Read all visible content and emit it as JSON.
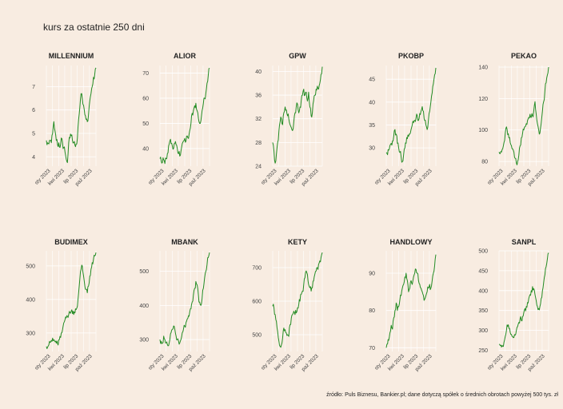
{
  "title": "kurs za ostatnie 250 dni",
  "source": "źródło: Puls Biznesu, Bankier.pl; dane dotyczą spółek o średnich obrotach powyżej 500 tys. zł",
  "line_color": "#238b23",
  "background": "#f8ece1",
  "chart_data": [
    {
      "type": "line",
      "title": "MILLENNIUM",
      "ylim": [
        3.6,
        7.9
      ],
      "yticks": [
        4,
        5,
        6,
        7
      ],
      "x_labels": [
        "sty 2023",
        "kwi 2023",
        "lip 2023",
        "paź 2023"
      ],
      "series": [
        {
          "values": [
            4.7,
            4.6,
            4.55,
            4.7,
            4.6,
            5.0,
            5.5,
            5.1,
            4.7,
            4.5,
            4.6,
            4.4,
            4.8,
            4.6,
            4.4,
            4.2,
            3.9,
            3.75,
            4.6,
            4.8,
            4.9,
            4.7,
            4.6,
            4.5,
            4.55,
            4.8,
            5.6,
            6.1,
            6.7,
            6.5,
            6.2,
            5.8,
            5.6,
            5.5,
            5.8,
            6.4,
            6.7,
            7.0,
            7.4,
            7.5,
            7.8
          ]
        }
      ]
    },
    {
      "type": "line",
      "title": "ALIOR",
      "ylim": [
        33,
        73
      ],
      "yticks": [
        40,
        50,
        60,
        70
      ],
      "x_labels": [
        "sty 2023",
        "kwi 2023",
        "lip 2023",
        "paź 2023"
      ],
      "series": [
        {
          "values": [
            36,
            35,
            34.5,
            35.5,
            34,
            36,
            38,
            41,
            43,
            42,
            41,
            40,
            42,
            41.5,
            40,
            38,
            37,
            39,
            42,
            43,
            44,
            43,
            45,
            44,
            47,
            50,
            54,
            55,
            57,
            58,
            55,
            52,
            50,
            51,
            55,
            58,
            60,
            62,
            66,
            69,
            72
          ]
        }
      ]
    },
    {
      "type": "line",
      "title": "GPW",
      "ylim": [
        24,
        41
      ],
      "yticks": [
        24,
        28,
        32,
        36,
        40
      ],
      "x_labels": [
        "sty 2023",
        "kwi 2023",
        "lip 2023",
        "paź 2023"
      ],
      "series": [
        {
          "values": [
            28,
            26.5,
            24.5,
            26,
            28,
            30,
            31.5,
            32,
            31,
            33,
            34,
            33.5,
            32.5,
            32,
            31,
            30.5,
            30,
            31.5,
            33,
            34,
            34.5,
            33,
            34,
            35,
            36,
            37,
            36,
            36.5,
            35,
            36.5,
            34,
            32.5,
            33,
            35,
            36,
            37,
            37.5,
            37,
            38,
            39.5,
            40.8
          ]
        }
      ]
    },
    {
      "type": "line",
      "title": "PKOBP",
      "ylim": [
        26,
        48
      ],
      "yticks": [
        30,
        35,
        40,
        45
      ],
      "x_labels": [
        "sty 2023",
        "kwi 2023",
        "lip 2023",
        "paź 2023"
      ],
      "series": [
        {
          "values": [
            29,
            28.5,
            29.5,
            30.5,
            31,
            31.5,
            32.5,
            34,
            33,
            31,
            30,
            29,
            28,
            27,
            28.5,
            30,
            31,
            32,
            32.5,
            33,
            34,
            35,
            35.5,
            36,
            36.5,
            37,
            36,
            37.5,
            38,
            39,
            38,
            36,
            35,
            34,
            36,
            38,
            40,
            42,
            44,
            46,
            47.5
          ]
        }
      ]
    },
    {
      "type": "line",
      "title": "PEKAO",
      "ylim": [
        77,
        141
      ],
      "yticks": [
        80,
        100,
        120,
        140
      ],
      "x_labels": [
        "sty 2023",
        "kwi 2023",
        "lip 2023",
        "paź 2023"
      ],
      "series": [
        {
          "values": [
            86,
            85,
            86,
            88,
            92,
            98,
            102,
            97,
            95,
            92,
            90,
            88,
            86,
            82,
            79,
            80,
            84,
            90,
            95,
            98,
            100,
            102,
            104,
            106,
            108,
            110,
            108,
            109,
            112,
            118,
            110,
            104,
            100,
            98,
            104,
            112,
            118,
            125,
            130,
            135,
            140
          ]
        }
      ]
    },
    {
      "type": "line",
      "title": "BUDIMEX",
      "ylim": [
        245,
        545
      ],
      "yticks": [
        300,
        400,
        500
      ],
      "x_labels": [
        "sty 2023",
        "kwi 2023",
        "lip 2023",
        "paź 2023"
      ],
      "series": [
        {
          "values": [
            260,
            258,
            265,
            272,
            278,
            285,
            280,
            274,
            270,
            268,
            280,
            290,
            300,
            310,
            330,
            340,
            345,
            350,
            355,
            360,
            365,
            358,
            355,
            360,
            370,
            380,
            420,
            460,
            490,
            500,
            470,
            440,
            430,
            420,
            440,
            470,
            490,
            510,
            520,
            530,
            540
          ]
        }
      ]
    },
    {
      "type": "line",
      "title": "MBANK",
      "ylim": [
        265,
        560
      ],
      "yticks": [
        300,
        400,
        500
      ],
      "x_labels": [
        "sty 2023",
        "kwi 2023",
        "lip 2023",
        "paź 2023"
      ],
      "series": [
        {
          "values": [
            300,
            295,
            290,
            310,
            300,
            290,
            285,
            282,
            300,
            320,
            330,
            340,
            330,
            310,
            300,
            295,
            290,
            300,
            320,
            330,
            340,
            350,
            360,
            370,
            380,
            390,
            410,
            430,
            450,
            470,
            460,
            430,
            410,
            400,
            420,
            450,
            480,
            500,
            520,
            540,
            555
          ]
        }
      ]
    },
    {
      "type": "line",
      "title": "KETY",
      "ylim": [
        450,
        750
      ],
      "yticks": [
        500,
        600,
        700
      ],
      "x_labels": [
        "sty 2023",
        "kwi 2023",
        "lip 2023",
        "paź 2023"
      ],
      "series": [
        {
          "values": [
            585,
            580,
            560,
            540,
            510,
            480,
            465,
            470,
            490,
            520,
            515,
            505,
            500,
            495,
            530,
            550,
            560,
            570,
            560,
            565,
            580,
            590,
            600,
            620,
            630,
            650,
            670,
            690,
            680,
            650,
            640,
            630,
            640,
            660,
            680,
            690,
            700,
            710,
            720,
            730,
            745
          ]
        }
      ]
    },
    {
      "type": "line",
      "title": "HANDLOWY",
      "ylim": [
        69,
        96
      ],
      "yticks": [
        70,
        80,
        90
      ],
      "x_labels": [
        "sty 2023",
        "kwi 2023",
        "lip 2023",
        "paź 2023"
      ],
      "series": [
        {
          "values": [
            70,
            71,
            72,
            74,
            76,
            75,
            78,
            80,
            82,
            80,
            81,
            83,
            84,
            86,
            87,
            89,
            90,
            88,
            85,
            86,
            88,
            87,
            89,
            90,
            91,
            90,
            88,
            87,
            86,
            85,
            84,
            83,
            84,
            85,
            86,
            87,
            86,
            88,
            90,
            92,
            95
          ]
        }
      ]
    },
    {
      "type": "line",
      "title": "SANPL",
      "ylim": [
        247,
        500
      ],
      "yticks": [
        250,
        300,
        350,
        400,
        450,
        500
      ],
      "x_labels": [
        "sty 2023",
        "kwi 2023",
        "lip 2023",
        "paź 2023"
      ],
      "series": [
        {
          "values": [
            265,
            262,
            258,
            260,
            270,
            285,
            300,
            310,
            305,
            295,
            290,
            285,
            282,
            288,
            300,
            310,
            320,
            330,
            325,
            335,
            345,
            355,
            360,
            370,
            380,
            390,
            400,
            410,
            405,
            390,
            375,
            360,
            355,
            360,
            380,
            400,
            420,
            440,
            460,
            480,
            495
          ]
        }
      ]
    }
  ]
}
